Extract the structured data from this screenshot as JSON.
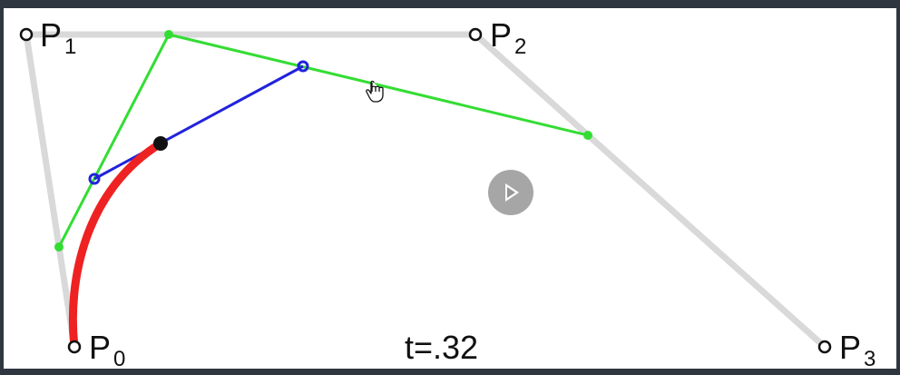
{
  "labels": {
    "p0": {
      "letter": "P",
      "sub": "0"
    },
    "p1": {
      "letter": "P",
      "sub": "1"
    },
    "p2": {
      "letter": "P",
      "sub": "2"
    },
    "p3": {
      "letter": "P",
      "sub": "3"
    }
  },
  "parameter_readout": "t=.32",
  "icons": {
    "play": "play-icon",
    "cursor": "hand-cursor-icon"
  },
  "colors": {
    "control_polygon": "#d9d9d9",
    "first_level": "#33dd33",
    "second_level": "#2222dd",
    "curve": "#ee2222",
    "point": "#111111",
    "frame": "#2f3640"
  }
}
